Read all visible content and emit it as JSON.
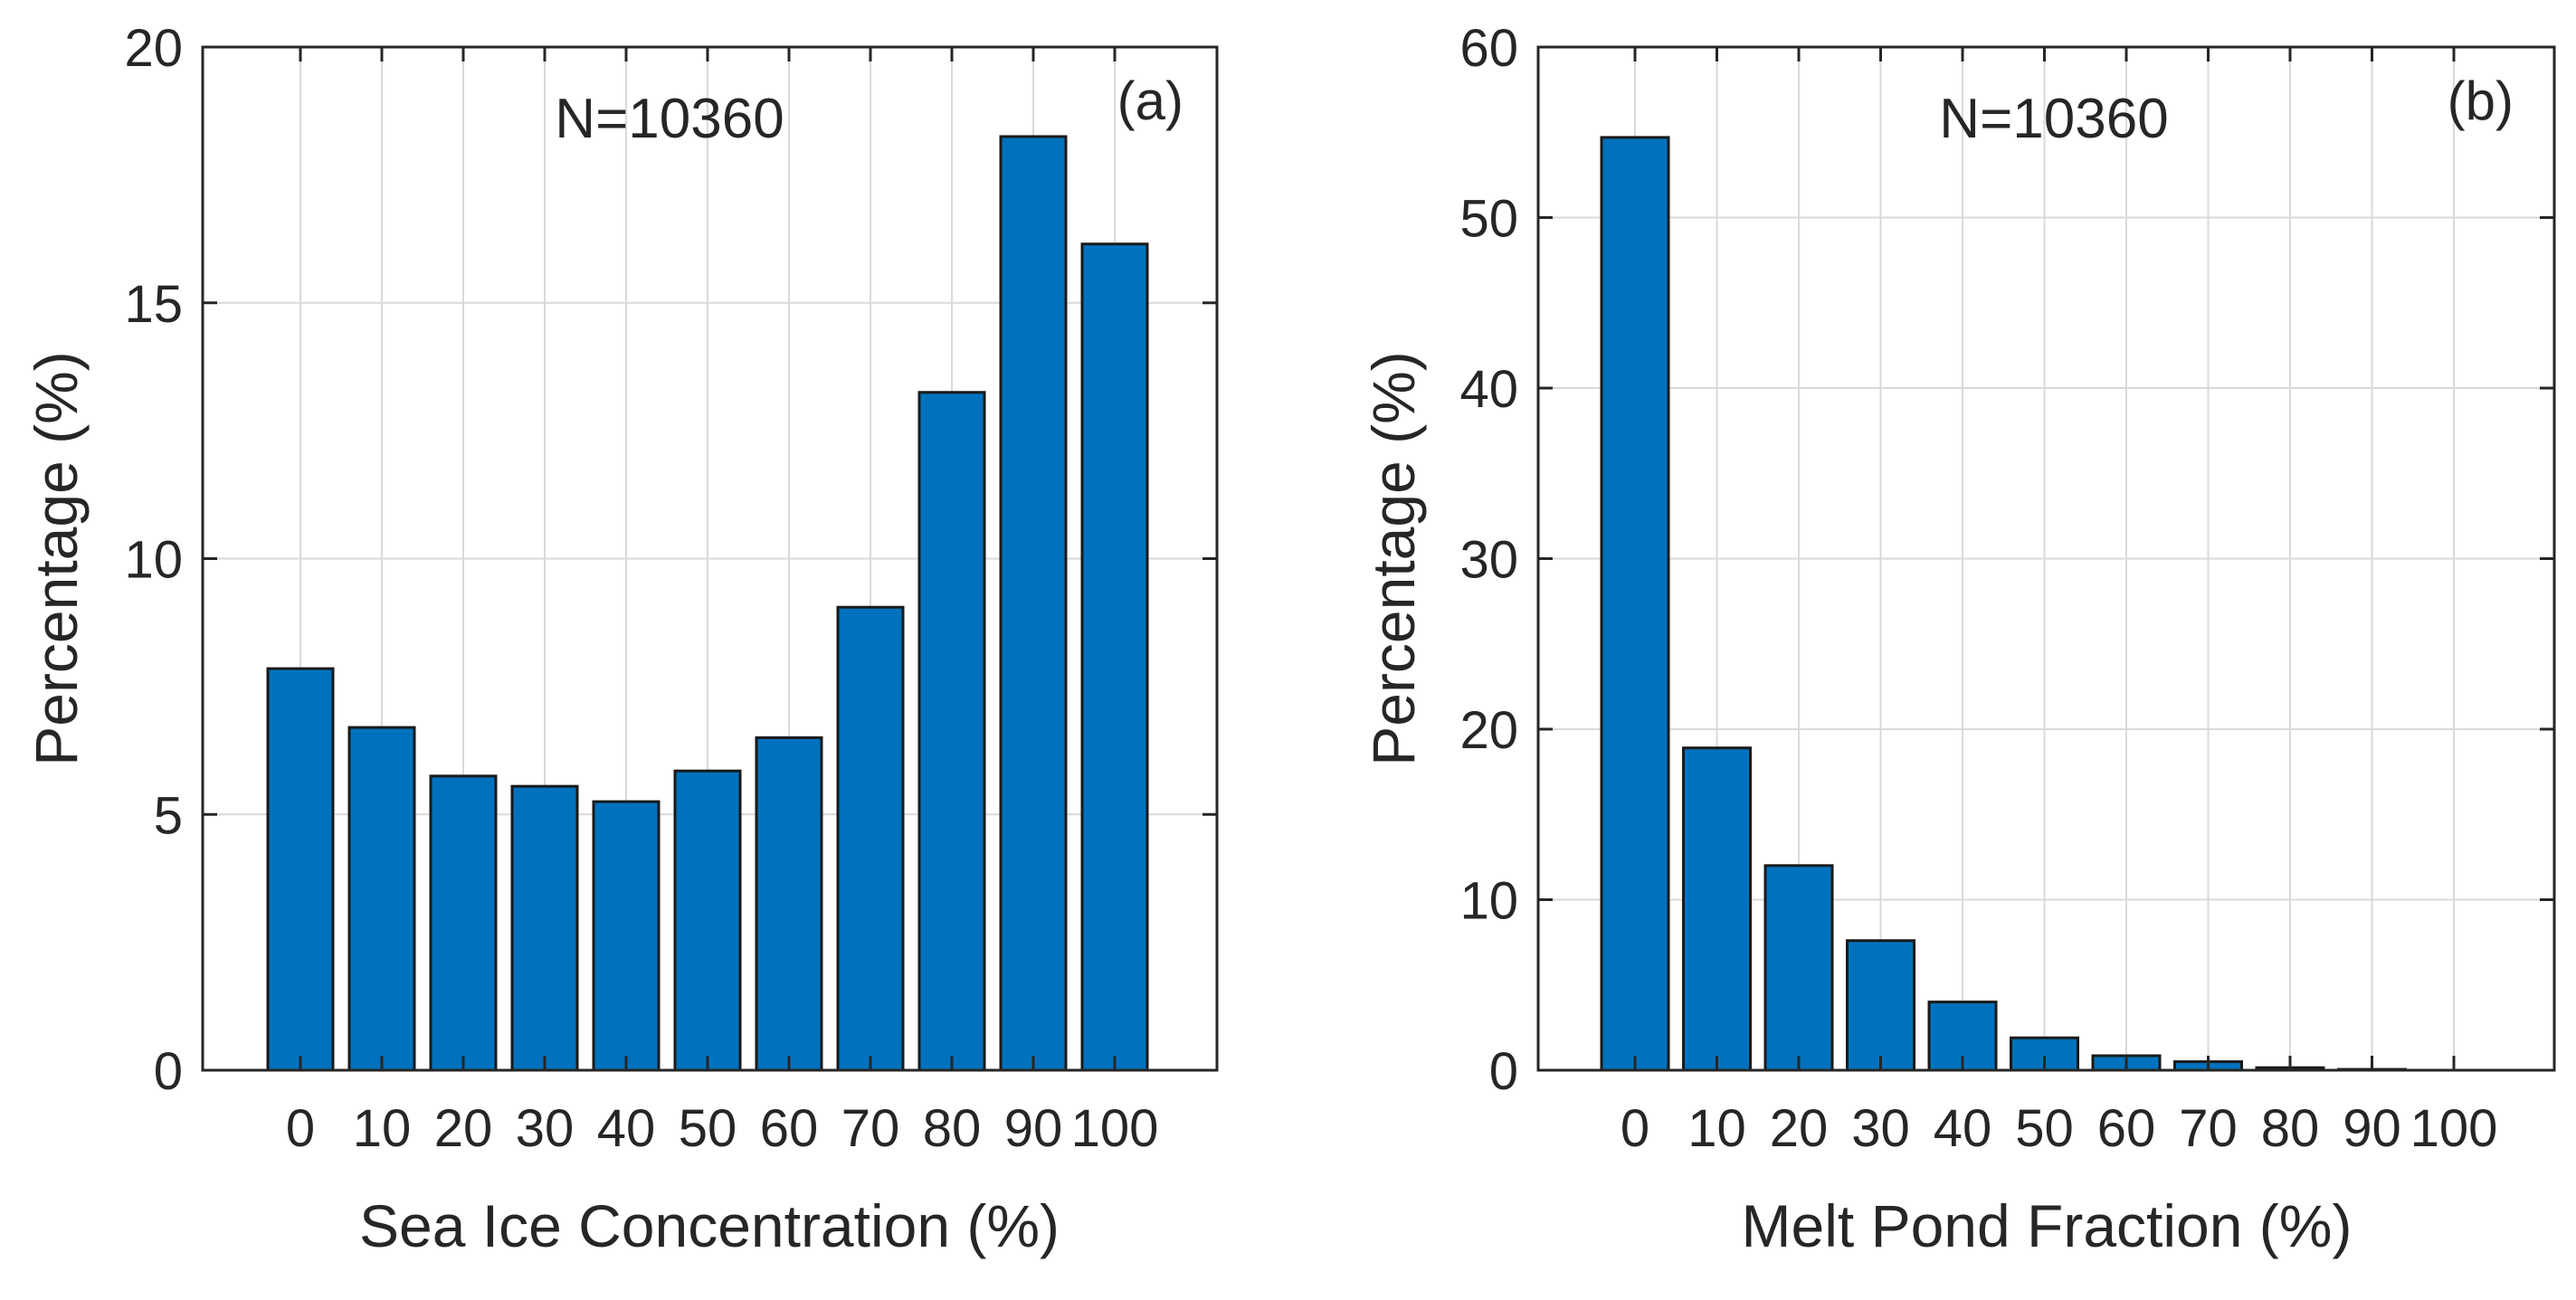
{
  "bar_color": "#0072BD",
  "chart_data": [
    {
      "type": "bar",
      "panel": "(a)",
      "annotation": "N=10360",
      "xlabel": "Sea Ice Concentration (%)",
      "ylabel": "Percentage (%)",
      "categories": [
        "0",
        "10",
        "20",
        "30",
        "40",
        "50",
        "60",
        "70",
        "80",
        "90",
        "100"
      ],
      "values": [
        7.85,
        6.7,
        5.75,
        5.55,
        5.25,
        5.85,
        6.5,
        9.05,
        13.25,
        18.25,
        16.15
      ],
      "ylim": [
        0,
        20
      ],
      "yticks": [
        0,
        5,
        10,
        15,
        20
      ],
      "grid": true
    },
    {
      "type": "bar",
      "panel": "(b)",
      "annotation": "N=10360",
      "xlabel": "Melt Pond Fraction (%)",
      "ylabel": "Percentage (%)",
      "categories": [
        "0",
        "10",
        "20",
        "30",
        "40",
        "50",
        "60",
        "70",
        "80",
        "90",
        "100"
      ],
      "values": [
        54.7,
        18.9,
        12.0,
        7.6,
        4.0,
        1.9,
        0.85,
        0.5,
        0.15,
        0.05,
        0.0
      ],
      "ylim": [
        0,
        60
      ],
      "yticks": [
        0,
        10,
        20,
        30,
        40,
        50,
        60
      ],
      "grid": true
    }
  ]
}
